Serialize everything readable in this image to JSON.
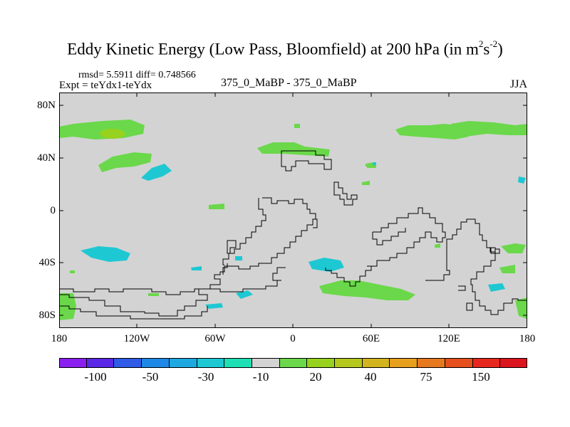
{
  "title": {
    "main": "Eddy Kinetic Energy (Low Pass, Bloomfield) at 200 hPa (in m",
    "sup1": "2",
    "mid": "s",
    "sup2": "-2",
    "end": ")"
  },
  "header": {
    "stats": "rmsd= 5.5911 diff= 0.748566",
    "expt": "Expt = teYdx1-teYdx",
    "center": "375_0_MaBP - 375_0_MaBP",
    "season": "JJA"
  },
  "axes": {
    "y_ticks": [
      "80N",
      "40N",
      "0",
      "40S",
      "80S"
    ],
    "x_ticks": [
      "180",
      "120W",
      "60W",
      "0",
      "60E",
      "120E",
      "180"
    ]
  },
  "colorbar": {
    "colors": [
      "#8a1ff0",
      "#5a28e6",
      "#2f5be6",
      "#1e88e6",
      "#1ea8e0",
      "#1ec8d2",
      "#1ee0b4",
      "#d3d3d3",
      "#6ad84a",
      "#96d21e",
      "#b4c81e",
      "#d2b41e",
      "#e6a01e",
      "#e6781e",
      "#e6501e",
      "#e6281e",
      "#dc141e"
    ],
    "labels": [
      "-100",
      "-50",
      "-30",
      "-10",
      "20",
      "40",
      "75",
      "150"
    ]
  },
  "map_colors": {
    "background": "#d3d3d3",
    "positive": "#6ad84a",
    "positive_strong": "#96d21e",
    "negative": "#1ec8d2",
    "outline": "#000000"
  }
}
